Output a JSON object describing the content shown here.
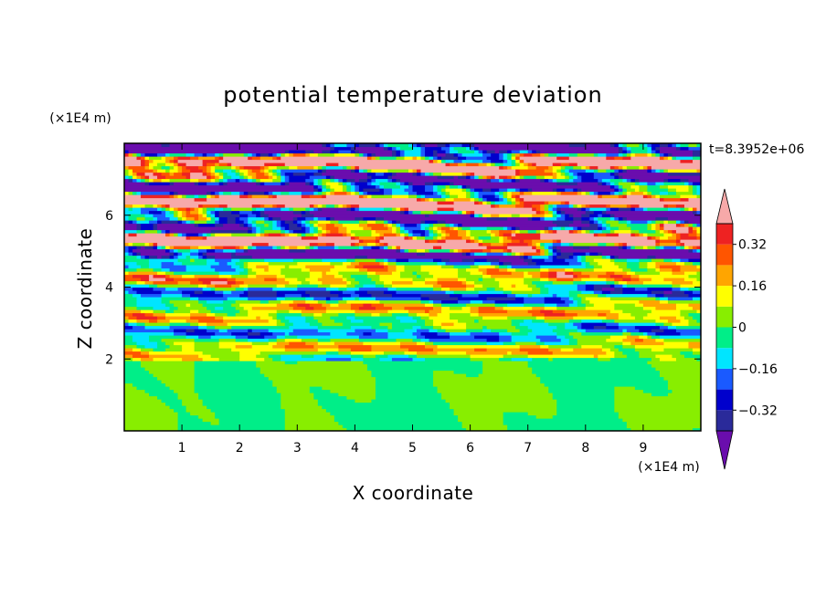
{
  "chart_data": {
    "type": "heatmap",
    "title": "potential temperature deviation",
    "xlabel": "X coordinate",
    "ylabel": "Z coordinate",
    "x_unit": "(×1E4 m)",
    "y_unit": "(×1E4 m)",
    "time_label": "t=8.3952e+06",
    "xlim": [
      0,
      10
    ],
    "ylim": [
      0,
      8
    ],
    "x_ticks": [
      1,
      2,
      3,
      4,
      5,
      6,
      7,
      8,
      9
    ],
    "y_ticks": [
      2,
      4,
      6
    ],
    "x_tick_labels": [
      "1",
      "2",
      "3",
      "4",
      "5",
      "6",
      "7",
      "8",
      "9"
    ],
    "y_tick_labels": [
      "2",
      "4",
      "6"
    ],
    "colorbar": {
      "levels": [
        -0.4,
        -0.32,
        -0.24,
        -0.16,
        -0.08,
        0,
        0.08,
        0.16,
        0.24,
        0.32,
        0.4
      ],
      "tick_values": [
        0.32,
        0.16,
        0,
        -0.16,
        -0.32
      ],
      "tick_labels": [
        "0.32",
        "0.16",
        "0",
        "−0.16",
        "−0.32"
      ],
      "colors": [
        "#6a0dad",
        "#2a2a9a",
        "#0000cc",
        "#1a5aff",
        "#00e5ff",
        "#00ee88",
        "#88ee00",
        "#ffff00",
        "#ffa500",
        "#ff5500",
        "#ee2222",
        "#f7a9a9"
      ],
      "extend": "both"
    }
  }
}
